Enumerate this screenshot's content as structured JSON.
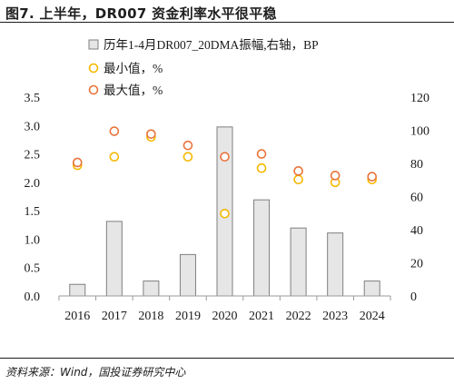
{
  "figure": {
    "title": "图7. 上半年，DR007 资金利率水平很平稳",
    "source": "资料来源：Wind，国投证券研究中心"
  },
  "colors": {
    "bar_fill": "#e6e6e6",
    "bar_stroke": "#7f7f7f",
    "min_marker": "#f5b800",
    "max_marker": "#e8743b",
    "axis": "#9a9a9a",
    "text": "#1a1a1a"
  },
  "chart_data": {
    "type": "bar",
    "categories": [
      "2016",
      "2017",
      "2018",
      "2019",
      "2020",
      "2021",
      "2022",
      "2023",
      "2024"
    ],
    "legend_position": "top",
    "grid": false,
    "y_left": {
      "ylim": [
        0,
        3.5
      ],
      "ticks": [
        "0.0",
        "0.5",
        "1.0",
        "1.5",
        "2.0",
        "2.5",
        "3.0",
        "3.5"
      ]
    },
    "y_right": {
      "ylim": [
        0,
        120
      ],
      "ticks": [
        "0",
        "20",
        "40",
        "60",
        "80",
        "100",
        "120"
      ]
    },
    "series": [
      {
        "name": "历年1-4月DR007_20DMA振幅,右轴，BP",
        "kind": "bar",
        "axis": "right",
        "values": [
          7,
          45,
          9,
          25,
          102,
          58,
          41,
          38,
          9
        ]
      },
      {
        "name": "最小值，%",
        "kind": "scatter",
        "axis": "left",
        "values": [
          2.3,
          2.45,
          2.8,
          2.45,
          1.45,
          2.25,
          2.05,
          2.0,
          2.05
        ]
      },
      {
        "name": "最大值，%",
        "kind": "scatter",
        "axis": "left",
        "values": [
          2.35,
          2.9,
          2.85,
          2.65,
          2.45,
          2.5,
          2.2,
          2.12,
          2.1
        ]
      }
    ]
  }
}
